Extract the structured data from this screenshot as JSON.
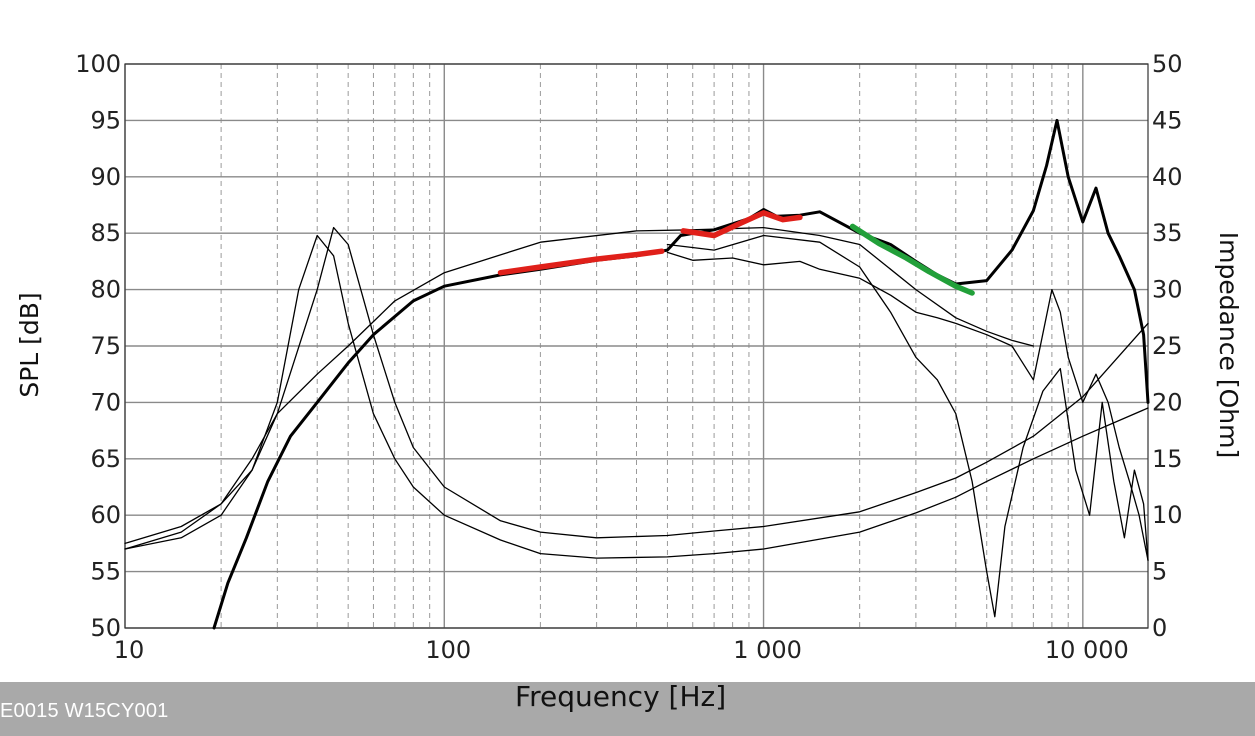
{
  "chart_data": {
    "type": "line",
    "xlabel": "Frequency [Hz]",
    "ylabel": "SPL [dB]",
    "y2label": "Impedance [Ohm]",
    "x_scale": "log",
    "xlim": [
      10,
      16000
    ],
    "ylim": [
      50,
      100
    ],
    "y2lim": [
      0,
      50
    ],
    "grid": true,
    "x_ticks": [
      {
        "value": 10,
        "label": "10"
      },
      {
        "value": 100,
        "label": "100"
      },
      {
        "value": 1000,
        "label": "1 000"
      },
      {
        "value": 10000,
        "label": "10 000"
      }
    ],
    "y_ticks": [
      "50",
      "55",
      "60",
      "65",
      "70",
      "75",
      "80",
      "85",
      "90",
      "95",
      "100"
    ],
    "y2_ticks": [
      "0",
      "5",
      "10",
      "15",
      "20",
      "25",
      "30",
      "35",
      "40",
      "45",
      "50"
    ],
    "series": [
      {
        "axis": "left",
        "color": "#000000",
        "style": "thick",
        "points": [
          [
            19,
            50
          ],
          [
            21,
            54
          ],
          [
            24,
            58
          ],
          [
            28,
            63
          ],
          [
            33,
            67
          ],
          [
            40,
            70
          ],
          [
            50,
            73.5
          ],
          [
            60,
            76
          ],
          [
            80,
            79
          ],
          [
            100,
            80.3
          ],
          [
            150,
            81.3
          ],
          [
            200,
            81.8
          ],
          [
            300,
            82.6
          ],
          [
            400,
            83
          ],
          [
            500,
            83.5
          ],
          [
            550,
            84.8
          ],
          [
            700,
            85.3
          ],
          [
            900,
            86.3
          ],
          [
            1000,
            87.1
          ],
          [
            1100,
            86.5
          ],
          [
            1300,
            86.6
          ],
          [
            1500,
            86.9
          ],
          [
            2000,
            85
          ],
          [
            2500,
            84
          ],
          [
            3000,
            82.5
          ],
          [
            3500,
            81.3
          ],
          [
            4000,
            80.5
          ],
          [
            5000,
            80.8
          ],
          [
            6000,
            83.5
          ],
          [
            7000,
            87
          ],
          [
            7700,
            91
          ],
          [
            8300,
            95
          ],
          [
            9000,
            90
          ],
          [
            10000,
            86
          ],
          [
            11000,
            89
          ],
          [
            12000,
            85
          ],
          [
            13000,
            83
          ],
          [
            14500,
            80
          ],
          [
            15500,
            76
          ],
          [
            16000,
            70
          ]
        ]
      },
      {
        "axis": "left",
        "color": "#000000",
        "style": "thin",
        "points": [
          [
            500,
            83.3
          ],
          [
            600,
            82.6
          ],
          [
            800,
            82.8
          ],
          [
            1000,
            82.2
          ],
          [
            1300,
            82.5
          ],
          [
            1500,
            81.8
          ],
          [
            2000,
            81
          ],
          [
            2500,
            79.5
          ],
          [
            3000,
            78
          ],
          [
            3500,
            77.5
          ],
          [
            4000,
            77
          ],
          [
            5000,
            76
          ],
          [
            6000,
            75
          ],
          [
            7000,
            72
          ],
          [
            8000,
            80
          ],
          [
            8500,
            78
          ],
          [
            9000,
            74
          ],
          [
            10000,
            70
          ],
          [
            11000,
            72.5
          ],
          [
            12000,
            70
          ],
          [
            13000,
            66
          ],
          [
            14000,
            63
          ],
          [
            15000,
            60
          ],
          [
            16000,
            56
          ]
        ]
      },
      {
        "axis": "left",
        "color": "#000000",
        "style": "thin",
        "points": [
          [
            500,
            84
          ],
          [
            700,
            83.5
          ],
          [
            1000,
            84.8
          ],
          [
            1500,
            84.2
          ],
          [
            2000,
            82
          ],
          [
            2500,
            78
          ],
          [
            3000,
            74
          ],
          [
            3500,
            72
          ],
          [
            4000,
            69
          ],
          [
            4500,
            63
          ],
          [
            5000,
            55
          ],
          [
            5300,
            51
          ],
          [
            5700,
            59
          ],
          [
            6500,
            66
          ],
          [
            7500,
            71
          ],
          [
            8500,
            73
          ],
          [
            9500,
            64
          ],
          [
            10500,
            60
          ],
          [
            11500,
            70
          ],
          [
            12500,
            63
          ],
          [
            13500,
            58
          ],
          [
            14500,
            64
          ],
          [
            15500,
            61
          ],
          [
            16000,
            56
          ]
        ]
      },
      {
        "axis": "left",
        "color": "#000000",
        "style": "thin",
        "points": [
          [
            10,
            57
          ],
          [
            15,
            58.5
          ],
          [
            20,
            61
          ],
          [
            25,
            65
          ],
          [
            30,
            69
          ],
          [
            40,
            72.5
          ],
          [
            50,
            75
          ],
          [
            70,
            79
          ],
          [
            100,
            81.5
          ],
          [
            200,
            84.2
          ],
          [
            400,
            85.2
          ],
          [
            600,
            85.3
          ],
          [
            1000,
            85.5
          ],
          [
            1500,
            84.8
          ],
          [
            2000,
            84
          ],
          [
            3000,
            80
          ],
          [
            4000,
            77.5
          ],
          [
            5000,
            76.3
          ],
          [
            6000,
            75.5
          ],
          [
            7000,
            75
          ]
        ]
      },
      {
        "axis": "right",
        "color": "#000000",
        "style": "thin",
        "points": [
          [
            10,
            7
          ],
          [
            15,
            8
          ],
          [
            20,
            10
          ],
          [
            25,
            14
          ],
          [
            30,
            20
          ],
          [
            35,
            30
          ],
          [
            40,
            34.8
          ],
          [
            45,
            33
          ],
          [
            50,
            27
          ],
          [
            60,
            19
          ],
          [
            70,
            15
          ],
          [
            80,
            12.5
          ],
          [
            100,
            10
          ],
          [
            150,
            7.8
          ],
          [
            200,
            6.6
          ],
          [
            300,
            6.2
          ],
          [
            500,
            6.3
          ],
          [
            700,
            6.6
          ],
          [
            1000,
            7
          ],
          [
            2000,
            8.5
          ],
          [
            3000,
            10.2
          ],
          [
            4000,
            11.6
          ],
          [
            5000,
            13
          ],
          [
            7000,
            15
          ],
          [
            10000,
            17
          ],
          [
            16000,
            19.5
          ]
        ]
      },
      {
        "axis": "right",
        "color": "#000000",
        "style": "thin",
        "points": [
          [
            10,
            7.5
          ],
          [
            15,
            9
          ],
          [
            20,
            11
          ],
          [
            25,
            14
          ],
          [
            30,
            19
          ],
          [
            40,
            30
          ],
          [
            45,
            35.5
          ],
          [
            50,
            34
          ],
          [
            60,
            26
          ],
          [
            70,
            20
          ],
          [
            80,
            16
          ],
          [
            100,
            12.5
          ],
          [
            150,
            9.5
          ],
          [
            200,
            8.5
          ],
          [
            300,
            8
          ],
          [
            500,
            8.2
          ],
          [
            700,
            8.6
          ],
          [
            1000,
            9
          ],
          [
            2000,
            10.3
          ],
          [
            3000,
            12
          ],
          [
            4000,
            13.3
          ],
          [
            5000,
            14.7
          ],
          [
            7000,
            17
          ],
          [
            10000,
            20.5
          ],
          [
            16000,
            27
          ]
        ]
      },
      {
        "axis": "left",
        "color": "#e0201a",
        "style": "highlight",
        "points": [
          [
            150,
            81.5
          ],
          [
            200,
            82
          ],
          [
            300,
            82.7
          ],
          [
            400,
            83.1
          ],
          [
            480,
            83.4
          ]
        ]
      },
      {
        "axis": "left",
        "color": "#e0201a",
        "style": "highlight",
        "points": [
          [
            560,
            85.2
          ],
          [
            700,
            84.8
          ],
          [
            850,
            85.9
          ],
          [
            1000,
            86.8
          ],
          [
            1150,
            86.2
          ],
          [
            1300,
            86.4
          ]
        ]
      },
      {
        "axis": "left",
        "color": "#22a03a",
        "style": "highlight",
        "points": [
          [
            1900,
            85.6
          ],
          [
            2300,
            84.1
          ],
          [
            2800,
            82.8
          ],
          [
            3300,
            81.6
          ],
          [
            4000,
            80.3
          ],
          [
            4500,
            79.7
          ]
        ]
      }
    ]
  },
  "footer": {
    "caption": "E0015 W15CY001"
  }
}
